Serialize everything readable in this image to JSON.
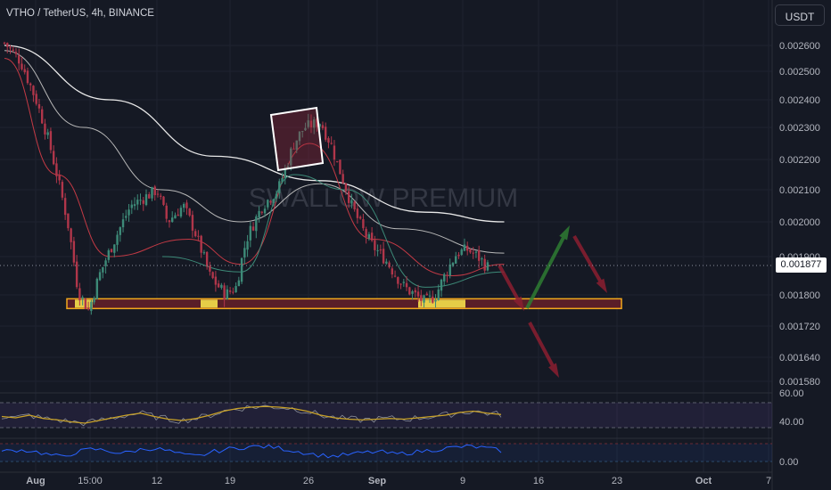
{
  "header": {
    "title": "VTHO / TetherUS, 4h, BINANCE"
  },
  "currency_button": "USDT",
  "watermark": "SWALLOW PREMIUM",
  "current_price_label": "0.001877",
  "colors": {
    "background": "#151924",
    "candle_up": "#3d8a78",
    "candle_down": "#b0364a",
    "ma_red": "#c43a45",
    "ma_green": "#3d8a78",
    "ma_white": "#e8e8e8",
    "ma_grey": "#b8b8b8",
    "support_zone_fill": "#5a1e28",
    "support_zone_border": "#f2a81c",
    "highlight": "#f5e04a",
    "arrow_green": "#2e7d32",
    "arrow_red": "#8b1f30",
    "rsi_line": "#c9a227",
    "osc_line": "#2962ff"
  },
  "chart_data": [
    {
      "type": "candlestick",
      "title": "VTHO / TetherUS, 4h, BINANCE",
      "price_axis": {
        "ticks": [
          "0.002600",
          "0.002500",
          "0.002400",
          "0.002300",
          "0.002200",
          "0.002100",
          "0.002000",
          "0.001900",
          "0.001800",
          "0.001720",
          "0.001640",
          "0.001580"
        ],
        "scale": "log"
      },
      "time_axis": {
        "ticks": [
          "Aug",
          "15:00",
          "12",
          "19",
          "26",
          "Sep",
          "9",
          "16",
          "23",
          "Oct",
          "7"
        ]
      },
      "current_price": 0.001877,
      "series_path": [
        [
          0,
          0.00261
        ],
        [
          3,
          0.00254
        ],
        [
          6,
          0.0024
        ],
        [
          9,
          0.00222
        ],
        [
          12,
          0.002
        ],
        [
          14,
          0.00181
        ],
        [
          16,
          0.00176
        ],
        [
          18,
          0.00185
        ],
        [
          21,
          0.00195
        ],
        [
          24,
          0.00205
        ],
        [
          27,
          0.00208
        ],
        [
          29,
          0.0021
        ],
        [
          31,
          0.002
        ],
        [
          34,
          0.00205
        ],
        [
          36,
          0.00198
        ],
        [
          39,
          0.00185
        ],
        [
          42,
          0.0018
        ],
        [
          44,
          0.00182
        ],
        [
          46,
          0.00195
        ],
        [
          49,
          0.00205
        ],
        [
          52,
          0.0021
        ],
        [
          55,
          0.00225
        ],
        [
          57,
          0.0023
        ],
        [
          60,
          0.00232
        ],
        [
          62,
          0.00225
        ],
        [
          64,
          0.00215
        ],
        [
          66,
          0.00205
        ],
        [
          68,
          0.00198
        ],
        [
          70,
          0.00193
        ],
        [
          72,
          0.0019
        ],
        [
          74,
          0.00186
        ],
        [
          76,
          0.00182
        ],
        [
          78,
          0.0018
        ],
        [
          80,
          0.00178
        ],
        [
          82,
          0.0018
        ],
        [
          84,
          0.00186
        ],
        [
          86,
          0.00191
        ],
        [
          88,
          0.00192
        ],
        [
          90,
          0.0019
        ],
        [
          92,
          0.00187
        ]
      ],
      "moving_averages": [
        {
          "color": "white",
          "points": [
            [
              0,
              0.0026
            ],
            [
              20,
              0.0024
            ],
            [
              40,
              0.00221
            ],
            [
              60,
              0.00213
            ],
            [
              80,
              0.00203
            ],
            [
              95,
              0.002
            ]
          ]
        },
        {
          "color": "grey",
          "points": [
            [
              0,
              0.00258
            ],
            [
              15,
              0.0023
            ],
            [
              30,
              0.0021
            ],
            [
              45,
              0.002
            ],
            [
              60,
              0.00212
            ],
            [
              75,
              0.00198
            ],
            [
              95,
              0.00191
            ]
          ]
        },
        {
          "color": "red",
          "points": [
            [
              0,
              0.00255
            ],
            [
              10,
              0.00215
            ],
            [
              20,
              0.0019
            ],
            [
              35,
              0.00195
            ],
            [
              45,
              0.00188
            ],
            [
              58,
              0.00225
            ],
            [
              70,
              0.00195
            ],
            [
              85,
              0.00185
            ],
            [
              95,
              0.00188
            ]
          ]
        },
        {
          "color": "green",
          "points": [
            [
              30,
              0.0019
            ],
            [
              45,
              0.00186
            ],
            [
              55,
              0.00215
            ],
            [
              65,
              0.0021
            ],
            [
              80,
              0.00182
            ],
            [
              95,
              0.00186
            ]
          ]
        }
      ],
      "support_zone": {
        "low": 0.001765,
        "high": 0.00179
      },
      "resistance_box": {
        "low": 0.0022,
        "high": 0.00236
      },
      "projection_arrows": [
        {
          "direction": "down",
          "color": "red"
        },
        {
          "direction": "up",
          "color": "green"
        },
        {
          "direction": "down",
          "color": "red"
        },
        {
          "direction": "down",
          "color": "red"
        }
      ]
    },
    {
      "type": "line",
      "name": "RSI",
      "ticks": [
        "60.00",
        "40.00"
      ],
      "ylim": [
        20,
        80
      ],
      "values": [
        50,
        48,
        52,
        47,
        45,
        42,
        40,
        44,
        48,
        52,
        55,
        50,
        46,
        44,
        47,
        52,
        58,
        62,
        64,
        65,
        64,
        62,
        58,
        52,
        48,
        46,
        45,
        46,
        47,
        46,
        48,
        50,
        52,
        56,
        58,
        55,
        53
      ]
    },
    {
      "type": "line",
      "name": "Oscillator",
      "ticks": [
        "0.00"
      ],
      "ylim": [
        -1,
        1
      ],
      "values": [
        0.1,
        0.3,
        0.2,
        -0.2,
        -0.5,
        0.1,
        0.4,
        0.2,
        -0.1,
        0.3,
        0.5,
        0.2,
        -0.3,
        -0.4,
        0.1,
        0.4,
        0.6,
        0.7,
        0.6,
        0.3,
        0.0,
        -0.3,
        -0.4,
        -0.2,
        0.0,
        0.1,
        -0.2,
        0.0,
        0.2,
        0.4,
        0.6,
        0.7,
        0.5,
        0.2
      ]
    }
  ]
}
